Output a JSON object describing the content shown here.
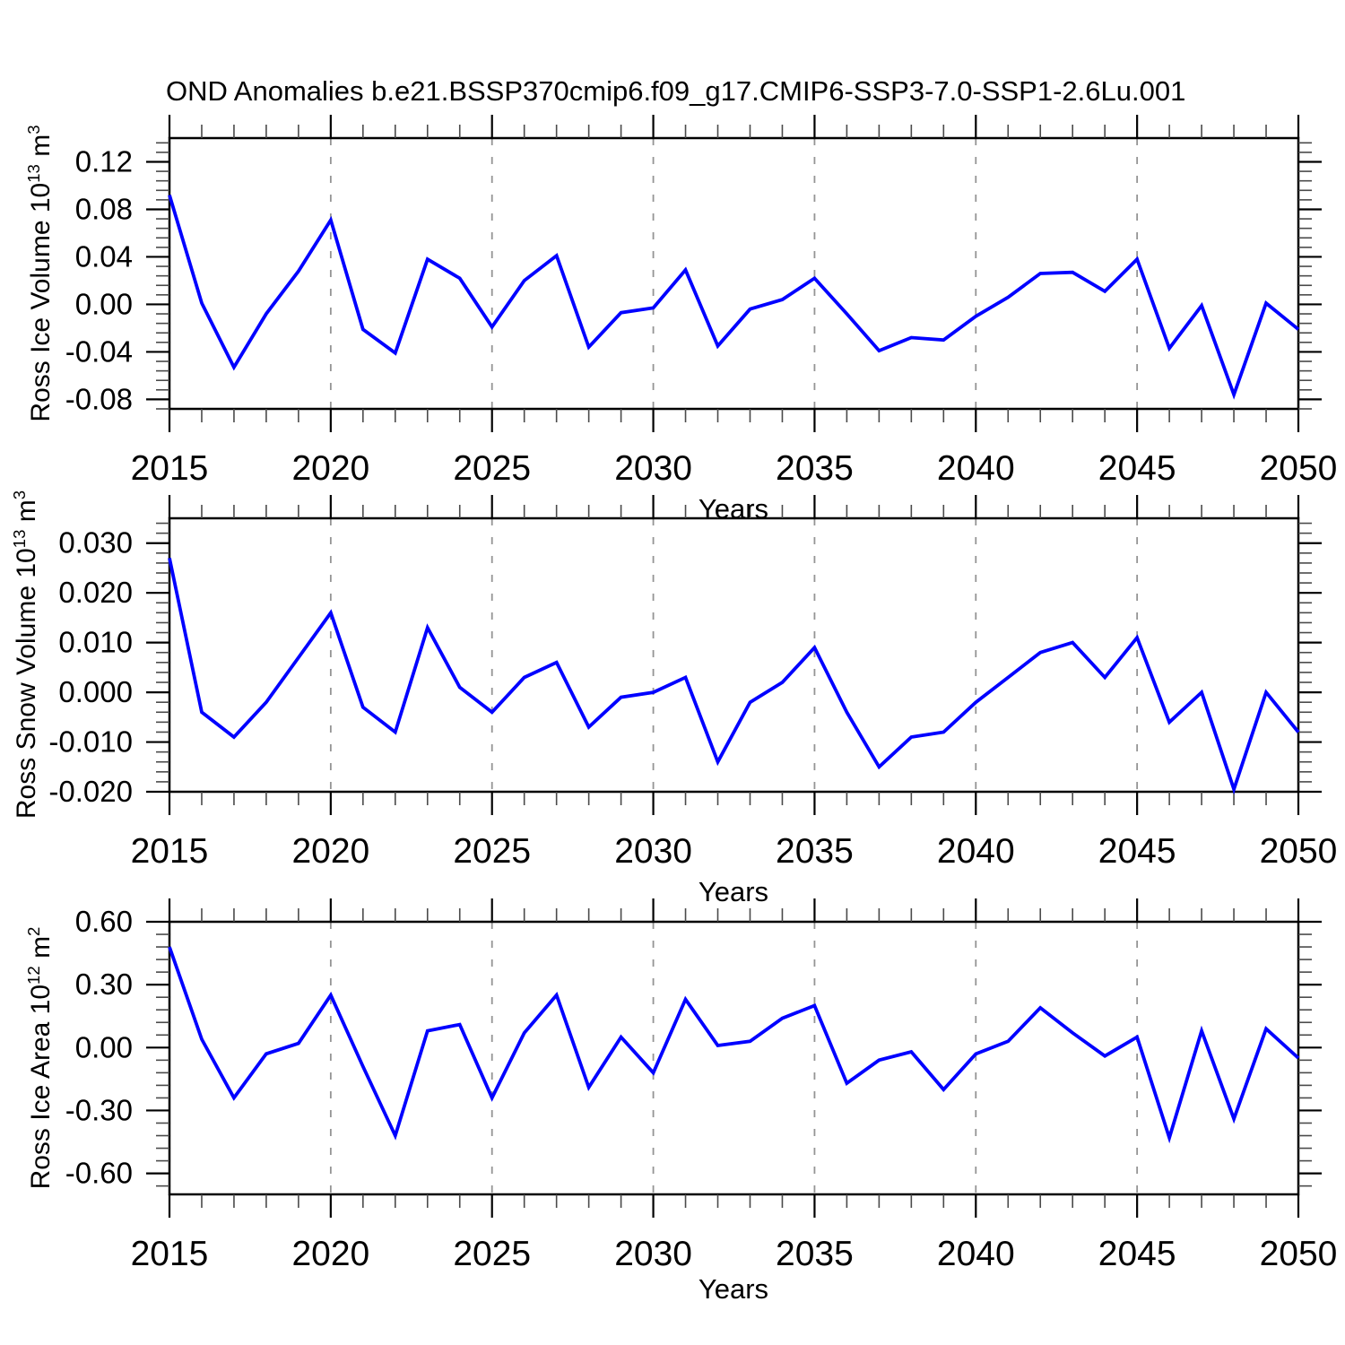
{
  "title": "OND Anomalies b.e21.BSSP370cmip6.f09_g17.CMIP6-SSP3-7.0-SSP1-2.6Lu.001",
  "colors": {
    "line": "#0000ff",
    "frame": "#000000",
    "grid": "#949494",
    "minor_tick": "#4a4a4a",
    "major_tick": "#000000"
  },
  "chart_data": [
    {
      "type": "line",
      "series_name": "Ross Ice Volume anomaly",
      "ylabel_parts": {
        "base": "Ross Ice Volume 10",
        "exp": "13",
        "unit": " m",
        "unit_exp": "3"
      },
      "xlabel": "Years",
      "x": [
        2015,
        2016,
        2017,
        2018,
        2019,
        2020,
        2021,
        2022,
        2023,
        2024,
        2025,
        2026,
        2027,
        2028,
        2029,
        2030,
        2031,
        2032,
        2033,
        2034,
        2035,
        2036,
        2037,
        2038,
        2039,
        2040,
        2041,
        2042,
        2043,
        2044,
        2045,
        2046,
        2047,
        2048,
        2049,
        2050
      ],
      "values": [
        0.092,
        0.001,
        -0.053,
        -0.008,
        0.028,
        0.071,
        -0.021,
        -0.041,
        0.038,
        0.022,
        -0.019,
        0.02,
        0.041,
        -0.036,
        -0.007,
        -0.003,
        0.029,
        -0.035,
        -0.004,
        0.004,
        0.022,
        -0.008,
        -0.039,
        -0.028,
        -0.03,
        -0.01,
        0.006,
        0.026,
        0.027,
        0.011,
        0.038,
        -0.037,
        -0.001,
        -0.076,
        0.001,
        -0.021
      ],
      "xlim": [
        2015,
        2050
      ],
      "ylim": [
        -0.088,
        0.14
      ],
      "xticks": [
        2015,
        2020,
        2025,
        2030,
        2035,
        2040,
        2045,
        2050
      ],
      "xtick_labels": [
        "2015",
        "2020",
        "2025",
        "2030",
        "2035",
        "2040",
        "2045",
        "2050"
      ],
      "xminor_step": 1,
      "yticks": [
        0.12,
        0.08,
        0.04,
        0.0,
        -0.04,
        -0.08
      ],
      "ytick_labels": [
        "0.12",
        "0.08",
        "0.04",
        "0.00",
        "-0.04",
        "-0.08"
      ],
      "yminor_step": 0.008,
      "gridlines": [
        2020,
        2025,
        2030,
        2035,
        2040,
        2045
      ],
      "grid": "vertical-dashed",
      "legend": "none"
    },
    {
      "type": "line",
      "series_name": "Ross Snow Volume anomaly",
      "ylabel_parts": {
        "base": "Ross Snow Volume 10",
        "exp": "13",
        "unit": " m",
        "unit_exp": "3"
      },
      "xlabel": "Years",
      "x": [
        2015,
        2016,
        2017,
        2018,
        2019,
        2020,
        2021,
        2022,
        2023,
        2024,
        2025,
        2026,
        2027,
        2028,
        2029,
        2030,
        2031,
        2032,
        2033,
        2034,
        2035,
        2036,
        2037,
        2038,
        2039,
        2040,
        2041,
        2042,
        2043,
        2044,
        2045,
        2046,
        2047,
        2048,
        2049,
        2050
      ],
      "values": [
        0.027,
        -0.004,
        -0.009,
        -0.002,
        0.007,
        0.016,
        -0.003,
        -0.008,
        0.013,
        0.001,
        -0.004,
        0.003,
        0.006,
        -0.007,
        -0.001,
        0.0,
        0.003,
        -0.014,
        -0.002,
        0.002,
        0.009,
        -0.004,
        -0.015,
        -0.009,
        -0.008,
        -0.002,
        0.003,
        0.008,
        0.01,
        0.003,
        0.011,
        -0.006,
        0.0,
        -0.0195,
        0.0,
        -0.008
      ],
      "xlim": [
        2015,
        2050
      ],
      "ylim": [
        -0.02,
        0.035
      ],
      "xticks": [
        2015,
        2020,
        2025,
        2030,
        2035,
        2040,
        2045,
        2050
      ],
      "xtick_labels": [
        "2015",
        "2020",
        "2025",
        "2030",
        "2035",
        "2040",
        "2045",
        "2050"
      ],
      "xminor_step": 1,
      "yticks": [
        0.03,
        0.02,
        0.01,
        0.0,
        -0.01,
        -0.02
      ],
      "ytick_labels": [
        "0.030",
        "0.020",
        "0.010",
        "0.000",
        "-0.010",
        "-0.020"
      ],
      "yminor_step": 0.002,
      "gridlines": [
        2020,
        2025,
        2030,
        2035,
        2040,
        2045
      ],
      "grid": "vertical-dashed",
      "legend": "none"
    },
    {
      "type": "line",
      "series_name": "Ross Ice Area anomaly",
      "ylabel_parts": {
        "base": "Ross Ice Area 10",
        "exp": "12",
        "unit": " m",
        "unit_exp": "2"
      },
      "xlabel": "Years",
      "x": [
        2015,
        2016,
        2017,
        2018,
        2019,
        2020,
        2021,
        2022,
        2023,
        2024,
        2025,
        2026,
        2027,
        2028,
        2029,
        2030,
        2031,
        2032,
        2033,
        2034,
        2035,
        2036,
        2037,
        2038,
        2039,
        2040,
        2041,
        2042,
        2043,
        2044,
        2045,
        2046,
        2047,
        2048,
        2049,
        2050
      ],
      "values": [
        0.48,
        0.04,
        -0.24,
        -0.03,
        0.02,
        0.25,
        -0.09,
        -0.42,
        0.08,
        0.11,
        -0.24,
        0.07,
        0.25,
        -0.19,
        0.05,
        -0.12,
        0.23,
        0.01,
        0.03,
        0.14,
        0.2,
        -0.17,
        -0.06,
        -0.02,
        -0.2,
        -0.03,
        0.03,
        0.19,
        0.07,
        -0.04,
        0.05,
        -0.43,
        0.08,
        -0.34,
        0.09,
        -0.05
      ],
      "xlim": [
        2015,
        2050
      ],
      "ylim": [
        -0.7,
        0.6
      ],
      "xticks": [
        2015,
        2020,
        2025,
        2030,
        2035,
        2040,
        2045,
        2050
      ],
      "xtick_labels": [
        "2015",
        "2020",
        "2025",
        "2030",
        "2035",
        "2040",
        "2045",
        "2050"
      ],
      "xminor_step": 1,
      "yticks": [
        0.6,
        0.3,
        0.0,
        -0.3,
        -0.6
      ],
      "ytick_labels": [
        "0.60",
        "0.30",
        "0.00",
        "-0.30",
        "-0.60"
      ],
      "yminor_step": 0.06,
      "gridlines": [
        2020,
        2025,
        2030,
        2035,
        2040,
        2045
      ],
      "grid": "vertical-dashed",
      "legend": "none"
    }
  ]
}
